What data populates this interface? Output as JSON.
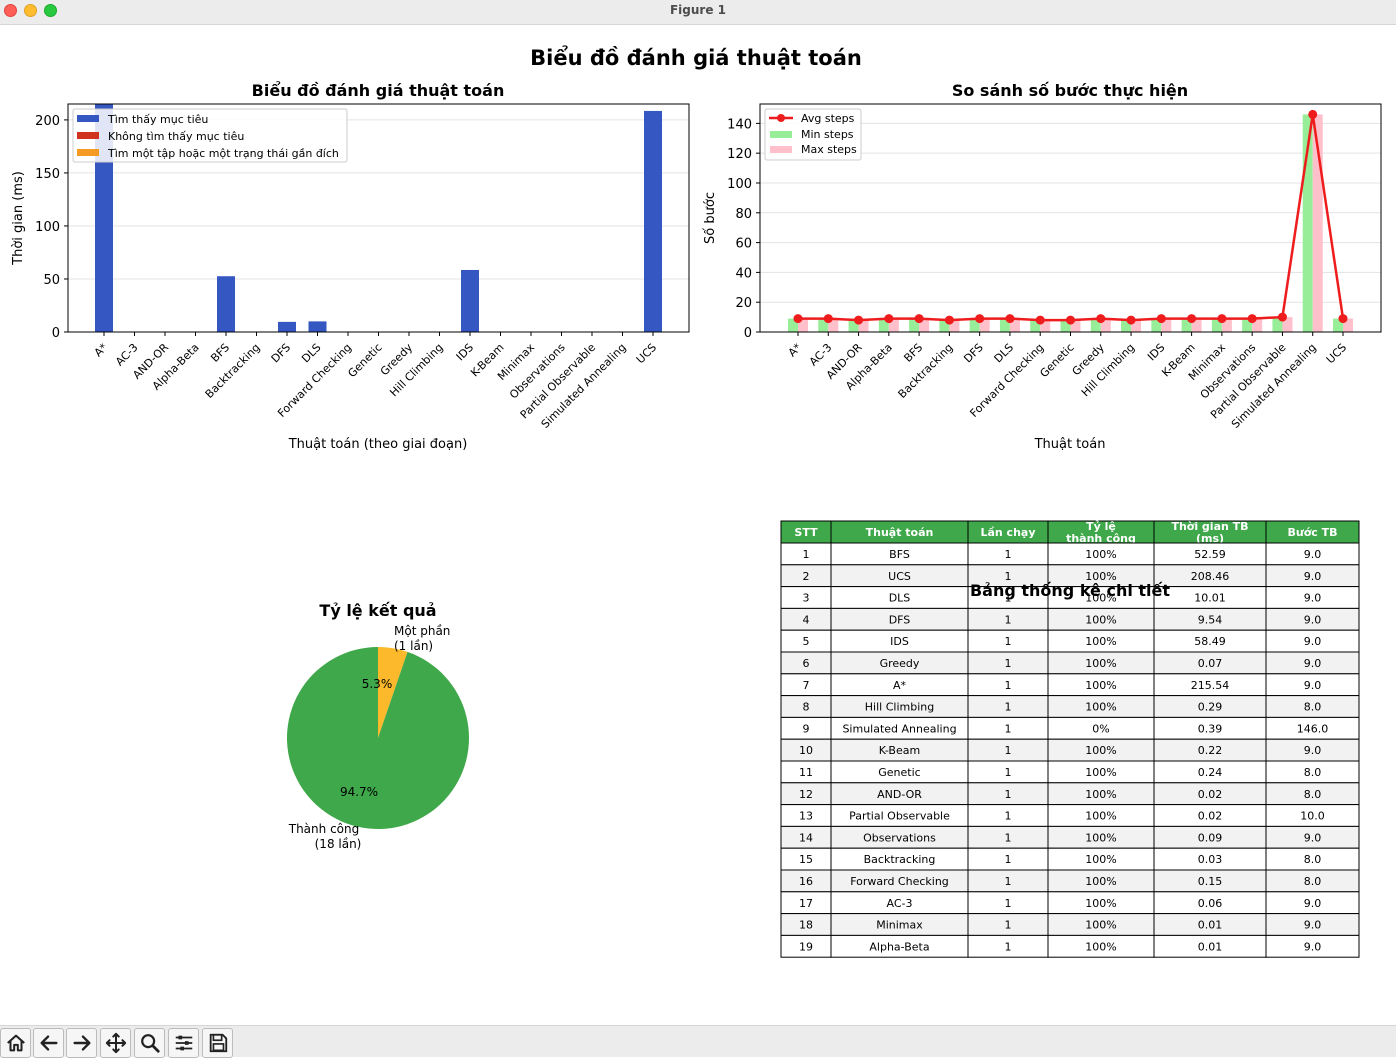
{
  "window": {
    "title": "Figure 1"
  },
  "figure": {
    "suptitle": "Biểu đồ đánh giá thuật toán"
  },
  "charts": {
    "time": {
      "title": "Biểu đồ đánh giá thuật toán",
      "xlabel": "Thuật toán (theo giai đoạn)",
      "ylabel": "Thời gian (ms)",
      "legend": [
        "Tìm thấy mục tiêu",
        "Không tìm thấy mục tiêu",
        "Tìm một tập hoặc một trạng thái gần đích"
      ],
      "colors": {
        "success": "#3457c2",
        "fail": "#d0341f",
        "partial": "#f59a23"
      }
    },
    "steps": {
      "title": "So sánh số bước thực hiện",
      "xlabel": "Thuật toán",
      "ylabel": "Số bước",
      "legend": [
        "Avg steps",
        "Min steps",
        "Max steps"
      ],
      "colors": {
        "avg": "#ee1c1c",
        "min": "#98ee98",
        "max": "#ffc0cb"
      }
    },
    "pie": {
      "title": "Tỷ lệ kết quả",
      "colors": {
        "success": "#3ea84a",
        "partial": "#fbb92b"
      }
    },
    "table": {
      "title": "Bảng thống kê chi tiết",
      "headers": [
        "STT",
        "Thuật toán",
        "Lần chạy",
        "Tỷ lệ\nthành công",
        "Thời gian TB\n(ms)",
        "Bước TB"
      ],
      "header_color": "#3ea84a",
      "stripe_color": "#f2f2f2"
    }
  },
  "chart_data": [
    {
      "type": "bar",
      "title": "Biểu đồ đánh giá thuật toán",
      "xlabel": "Thuật toán (theo giai đoạn)",
      "ylabel": "Thời gian (ms)",
      "categories": [
        "A*",
        "AC-3",
        "AND-OR",
        "Alpha-Beta",
        "BFS",
        "Backtracking",
        "DFS",
        "DLS",
        "Forward Checking",
        "Genetic",
        "Greedy",
        "Hill Climbing",
        "IDS",
        "K-Beam",
        "Minimax",
        "Observations",
        "Partial Observable",
        "Simulated Annealing",
        "UCS"
      ],
      "values": [
        215.54,
        0.06,
        0.02,
        0.01,
        52.59,
        0.03,
        9.54,
        10.01,
        0.15,
        0.24,
        0.07,
        0.29,
        58.49,
        0.22,
        0.01,
        0.09,
        0.02,
        0.39,
        208.46
      ],
      "yticks": [
        0,
        50,
        100,
        150,
        200
      ],
      "ylim": [
        0,
        215
      ],
      "grid": true,
      "legend_position": "top-left"
    },
    {
      "type": "bar",
      "title": "So sánh số bước thực hiện",
      "xlabel": "Thuật toán",
      "ylabel": "Số bước",
      "categories": [
        "A*",
        "AC-3",
        "AND-OR",
        "Alpha-Beta",
        "BFS",
        "Backtracking",
        "DFS",
        "DLS",
        "Forward Checking",
        "Genetic",
        "Greedy",
        "Hill Climbing",
        "IDS",
        "K-Beam",
        "Minimax",
        "Observations",
        "Partial Observable",
        "Simulated Annealing",
        "UCS"
      ],
      "series": [
        {
          "name": "Avg steps",
          "type": "line",
          "values": [
            9,
            9,
            8,
            9,
            9,
            8,
            9,
            9,
            8,
            8,
            9,
            8,
            9,
            9,
            9,
            9,
            10,
            146,
            9
          ]
        },
        {
          "name": "Min steps",
          "type": "bar",
          "values": [
            9,
            9,
            8,
            9,
            9,
            8,
            9,
            9,
            8,
            8,
            9,
            8,
            9,
            9,
            9,
            9,
            10,
            146,
            9
          ]
        },
        {
          "name": "Max steps",
          "type": "bar",
          "values": [
            9,
            9,
            8,
            9,
            9,
            8,
            9,
            9,
            8,
            8,
            9,
            8,
            9,
            9,
            9,
            9,
            10,
            146,
            9
          ]
        }
      ],
      "yticks": [
        0,
        20,
        40,
        60,
        80,
        100,
        120,
        140
      ],
      "ylim": [
        0,
        153
      ],
      "grid": true,
      "legend_position": "top-left"
    },
    {
      "type": "pie",
      "title": "Tỷ lệ kết quả",
      "slices": [
        {
          "label": "Thành công\n(18 lần)",
          "value": 18,
          "percent": "94.7%"
        },
        {
          "label": "Một phần\n(1 lần)",
          "value": 1,
          "percent": "5.3%"
        }
      ]
    },
    {
      "type": "table",
      "title": "Bảng thống kê chi tiết",
      "rows": [
        [
          "1",
          "BFS",
          "1",
          "100%",
          "52.59",
          "9.0"
        ],
        [
          "2",
          "UCS",
          "1",
          "100%",
          "208.46",
          "9.0"
        ],
        [
          "3",
          "DLS",
          "1",
          "100%",
          "10.01",
          "9.0"
        ],
        [
          "4",
          "DFS",
          "1",
          "100%",
          "9.54",
          "9.0"
        ],
        [
          "5",
          "IDS",
          "1",
          "100%",
          "58.49",
          "9.0"
        ],
        [
          "6",
          "Greedy",
          "1",
          "100%",
          "0.07",
          "9.0"
        ],
        [
          "7",
          "A*",
          "1",
          "100%",
          "215.54",
          "9.0"
        ],
        [
          "8",
          "Hill Climbing",
          "1",
          "100%",
          "0.29",
          "8.0"
        ],
        [
          "9",
          "Simulated Annealing",
          "1",
          "0%",
          "0.39",
          "146.0"
        ],
        [
          "10",
          "K-Beam",
          "1",
          "100%",
          "0.22",
          "9.0"
        ],
        [
          "11",
          "Genetic",
          "1",
          "100%",
          "0.24",
          "8.0"
        ],
        [
          "12",
          "AND-OR",
          "1",
          "100%",
          "0.02",
          "8.0"
        ],
        [
          "13",
          "Partial Observable",
          "1",
          "100%",
          "0.02",
          "10.0"
        ],
        [
          "14",
          "Observations",
          "1",
          "100%",
          "0.09",
          "9.0"
        ],
        [
          "15",
          "Backtracking",
          "1",
          "100%",
          "0.03",
          "8.0"
        ],
        [
          "16",
          "Forward Checking",
          "1",
          "100%",
          "0.15",
          "8.0"
        ],
        [
          "17",
          "AC-3",
          "1",
          "100%",
          "0.06",
          "9.0"
        ],
        [
          "18",
          "Minimax",
          "1",
          "100%",
          "0.01",
          "9.0"
        ],
        [
          "19",
          "Alpha-Beta",
          "1",
          "100%",
          "0.01",
          "9.0"
        ]
      ]
    }
  ],
  "toolbar": [
    "home-icon",
    "back-arrow-icon",
    "forward-arrow-icon",
    "pan-icon",
    "zoom-icon",
    "configure-subplots-icon",
    "save-icon"
  ]
}
